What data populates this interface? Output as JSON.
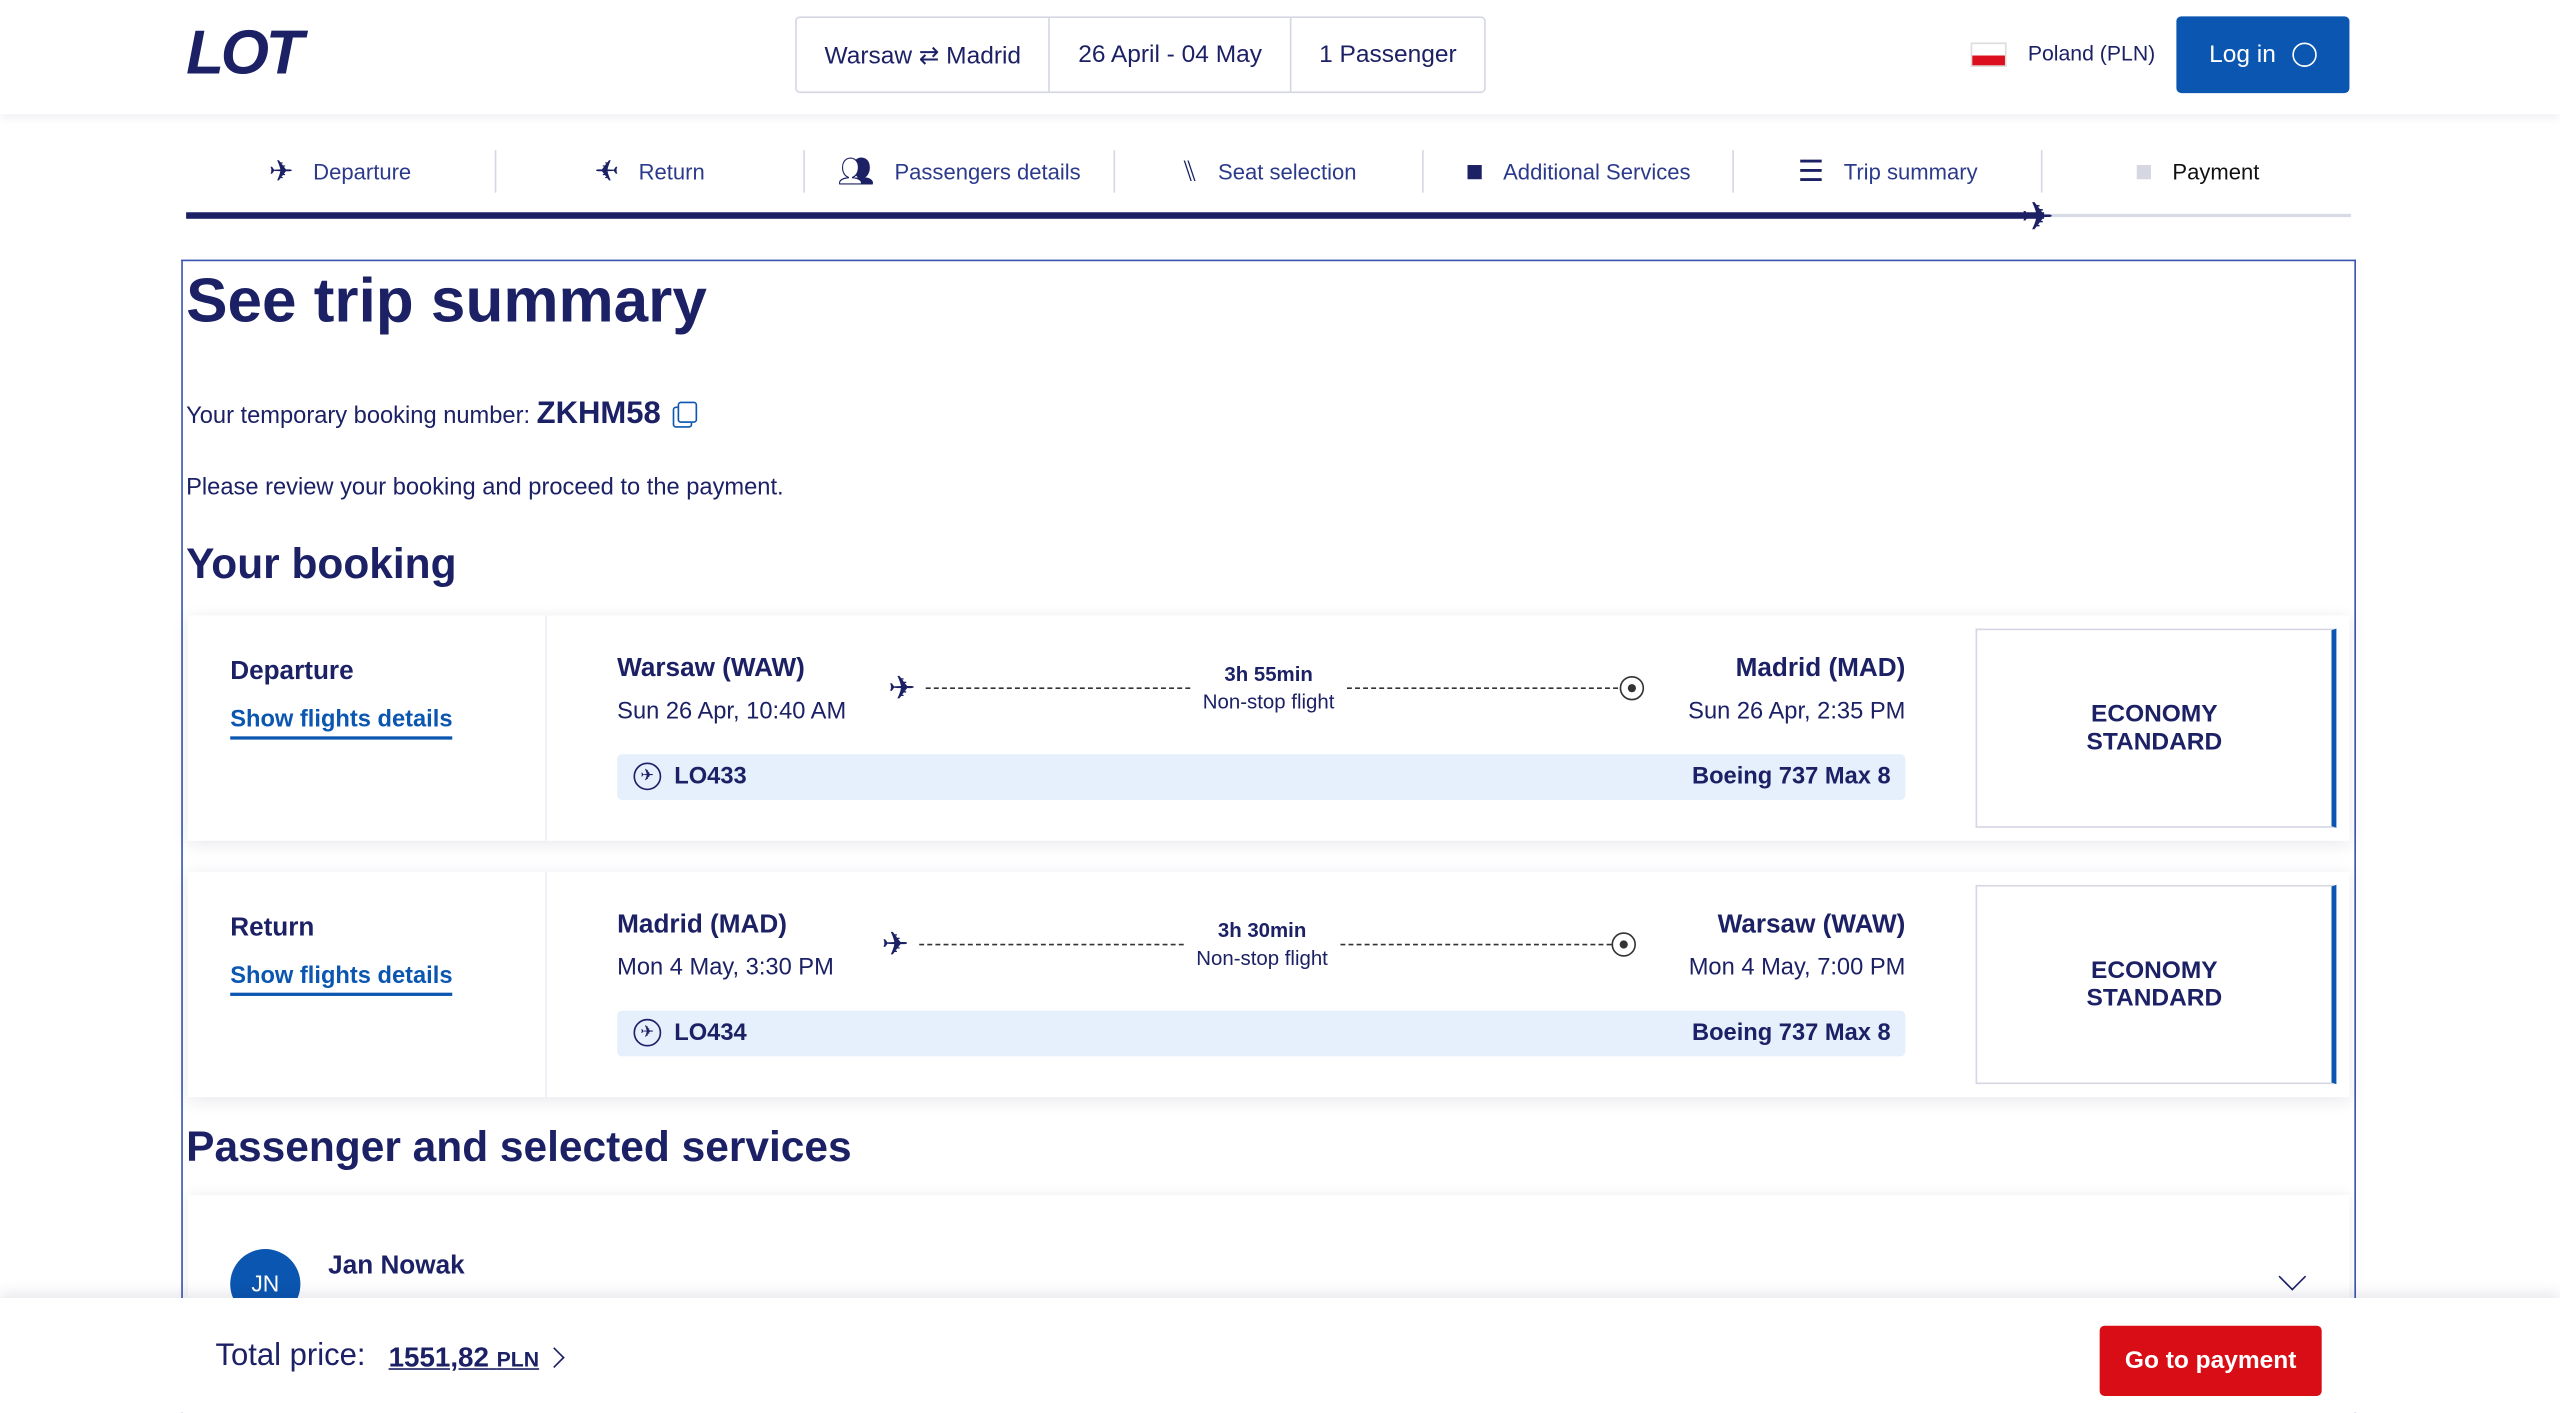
{
  "header": {
    "logo": "LOT",
    "route": "Warsaw ⇄ Madrid",
    "dates": "26 April - 04 May",
    "passengers": "1 Passenger",
    "country": "Poland (PLN)",
    "login": "Log in"
  },
  "steps": [
    {
      "label": "Departure",
      "icon": "plane-icon"
    },
    {
      "label": "Return",
      "icon": "plane-return-icon"
    },
    {
      "label": "Passengers details",
      "icon": "people-icon"
    },
    {
      "label": "Seat selection",
      "icon": "seat-icon"
    },
    {
      "label": "Additional Services",
      "icon": "suitcase-icon"
    },
    {
      "label": "Trip summary",
      "icon": "document-icon"
    },
    {
      "label": "Payment",
      "icon": "wallet-icon"
    }
  ],
  "page": {
    "title": "See trip summary",
    "booking_label": "Your temporary booking number:",
    "booking_number": "ZKHM58",
    "review": "Please review your booking and proceed to the payment.",
    "booking_heading": "Your booking",
    "passengers_heading": "Passenger and selected services"
  },
  "flights": [
    {
      "label": "Departure",
      "details": "Show flights details",
      "from": "Warsaw (WAW)",
      "from_time": "Sun 26 Apr, 10:40 AM",
      "to": "Madrid (MAD)",
      "to_time": "Sun 26 Apr, 2:35 PM",
      "duration": "3h 55min",
      "stops": "Non-stop flight",
      "flight_no": "LO433",
      "aircraft": "Boeing 737 Max 8",
      "fare_line1": "ECONOMY",
      "fare_line2": "STANDARD"
    },
    {
      "label": "Return",
      "details": "Show flights details",
      "from": "Madrid (MAD)",
      "from_time": "Mon 4 May, 3:30 PM",
      "to": "Warsaw (WAW)",
      "to_time": "Mon 4 May, 7:00 PM",
      "duration": "3h 30min",
      "stops": "Non-stop flight",
      "flight_no": "LO434",
      "aircraft": "Boeing 737 Max 8",
      "fare_line1": "ECONOMY",
      "fare_line2": "STANDARD"
    }
  ],
  "passenger": {
    "initials": "JN",
    "name": "Jan Nowak"
  },
  "footer": {
    "total_label": "Total price:",
    "amount": "1551,82",
    "currency": "PLN",
    "pay": "Go to payment"
  },
  "colors": {
    "navy": "#1c2165",
    "accent": "#0b56b0",
    "cta": "#d90d15",
    "flight_bar": "#e6effc"
  }
}
